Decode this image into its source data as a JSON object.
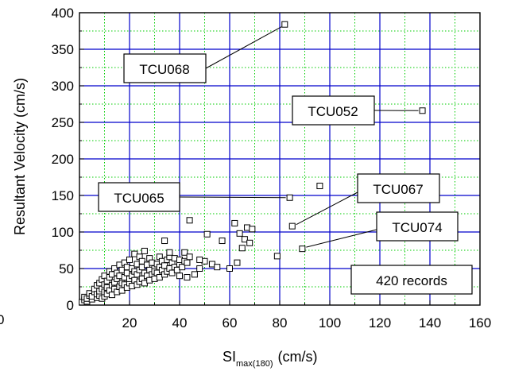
{
  "chart_data": {
    "type": "scatter",
    "title": "",
    "xlabel": {
      "main": "SI",
      "subscript": "max(180)",
      "unit": "(cm/s)"
    },
    "ylabel": "Resultant Velocity (cm/s)",
    "xlim": [
      0,
      160
    ],
    "ylim": [
      0,
      400
    ],
    "x_ticks": [
      20,
      40,
      60,
      80,
      100,
      120,
      140,
      160
    ],
    "y_ticks": [
      0,
      50,
      100,
      150,
      200,
      250,
      300,
      350,
      400
    ],
    "origin_label": "0",
    "grid": true,
    "grid_major_color": "#0000cc",
    "grid_minor_color": "#00cc00",
    "marker": "open-square",
    "series": [
      {
        "points": [
          [
            1,
            4
          ],
          [
            2,
            7
          ],
          [
            2,
            11
          ],
          [
            3,
            5
          ],
          [
            3,
            9
          ],
          [
            4,
            13
          ],
          [
            4,
            16
          ],
          [
            5,
            8
          ],
          [
            5,
            12
          ],
          [
            6,
            18
          ],
          [
            6,
            22
          ],
          [
            7,
            10
          ],
          [
            7,
            15
          ],
          [
            7,
            27
          ],
          [
            8,
            13
          ],
          [
            8,
            19
          ],
          [
            8,
            30
          ],
          [
            9,
            9
          ],
          [
            9,
            22
          ],
          [
            9,
            35
          ],
          [
            10,
            12
          ],
          [
            10,
            18
          ],
          [
            10,
            28
          ],
          [
            10,
            40
          ],
          [
            11,
            15
          ],
          [
            11,
            24
          ],
          [
            11,
            33
          ],
          [
            12,
            20
          ],
          [
            12,
            38
          ],
          [
            12,
            46
          ],
          [
            13,
            14
          ],
          [
            13,
            27
          ],
          [
            13,
            42
          ],
          [
            14,
            22
          ],
          [
            14,
            31
          ],
          [
            14,
            50
          ],
          [
            15,
            18
          ],
          [
            15,
            36
          ],
          [
            15,
            44
          ],
          [
            16,
            25
          ],
          [
            16,
            40
          ],
          [
            16,
            55
          ],
          [
            17,
            20
          ],
          [
            17,
            30
          ],
          [
            17,
            48
          ],
          [
            18,
            28
          ],
          [
            18,
            38
          ],
          [
            18,
            58
          ],
          [
            19,
            24
          ],
          [
            19,
            44
          ],
          [
            19,
            52
          ],
          [
            20,
            30
          ],
          [
            20,
            36
          ],
          [
            20,
            62
          ],
          [
            21,
            26
          ],
          [
            21,
            40
          ],
          [
            21,
            50
          ],
          [
            22,
            34
          ],
          [
            22,
            46
          ],
          [
            22,
            70
          ],
          [
            23,
            28
          ],
          [
            23,
            42
          ],
          [
            23,
            56
          ],
          [
            24,
            32
          ],
          [
            24,
            48
          ],
          [
            24,
            66
          ],
          [
            25,
            36
          ],
          [
            25,
            52
          ],
          [
            25,
            60
          ],
          [
            26,
            30
          ],
          [
            26,
            44
          ],
          [
            26,
            74
          ],
          [
            27,
            40
          ],
          [
            27,
            55
          ],
          [
            28,
            34
          ],
          [
            28,
            48
          ],
          [
            28,
            64
          ],
          [
            29,
            42
          ],
          [
            29,
            58
          ],
          [
            30,
            36
          ],
          [
            30,
            50
          ],
          [
            30,
            46
          ],
          [
            31,
            44
          ],
          [
            31,
            56
          ],
          [
            32,
            38
          ],
          [
            32,
            52
          ],
          [
            32,
            66
          ],
          [
            33,
            48
          ],
          [
            33,
            60
          ],
          [
            34,
            42
          ],
          [
            34,
            54
          ],
          [
            35,
            46
          ],
          [
            35,
            62
          ],
          [
            36,
            50
          ],
          [
            36,
            66
          ],
          [
            37,
            44
          ],
          [
            37,
            58
          ],
          [
            38,
            52
          ],
          [
            38,
            64
          ],
          [
            39,
            48
          ],
          [
            40,
            56
          ],
          [
            40,
            62
          ],
          [
            41,
            52
          ],
          [
            42,
            60
          ],
          [
            42,
            72
          ],
          [
            43,
            58
          ],
          [
            44,
            66
          ],
          [
            46,
            42
          ],
          [
            48,
            50
          ],
          [
            50,
            60
          ],
          [
            34,
            88
          ],
          [
            36,
            72
          ],
          [
            40,
            40
          ],
          [
            43,
            38
          ],
          [
            44,
            116
          ],
          [
            48,
            62
          ],
          [
            51,
            97
          ],
          [
            53,
            56
          ],
          [
            55,
            52
          ],
          [
            57,
            88
          ],
          [
            60,
            50
          ],
          [
            62,
            112
          ],
          [
            63,
            58
          ],
          [
            64,
            98
          ],
          [
            65,
            78
          ],
          [
            66,
            90
          ],
          [
            67,
            106
          ],
          [
            68,
            85
          ],
          [
            69,
            104
          ],
          [
            79,
            67
          ],
          [
            82,
            384
          ],
          [
            84,
            147
          ],
          [
            85,
            108
          ],
          [
            89,
            77
          ],
          [
            96,
            163
          ],
          [
            137,
            266
          ]
        ]
      }
    ],
    "annotations": [
      {
        "label": "TCU068",
        "x": 82,
        "y": 384
      },
      {
        "label": "TCU052",
        "x": 137,
        "y": 266
      },
      {
        "label": "TCU065",
        "x": 84,
        "y": 147
      },
      {
        "label": "TCU067",
        "x": 85,
        "y": 108
      },
      {
        "label": "TCU074",
        "x": 89,
        "y": 77
      },
      {
        "label": "420 records"
      }
    ]
  }
}
